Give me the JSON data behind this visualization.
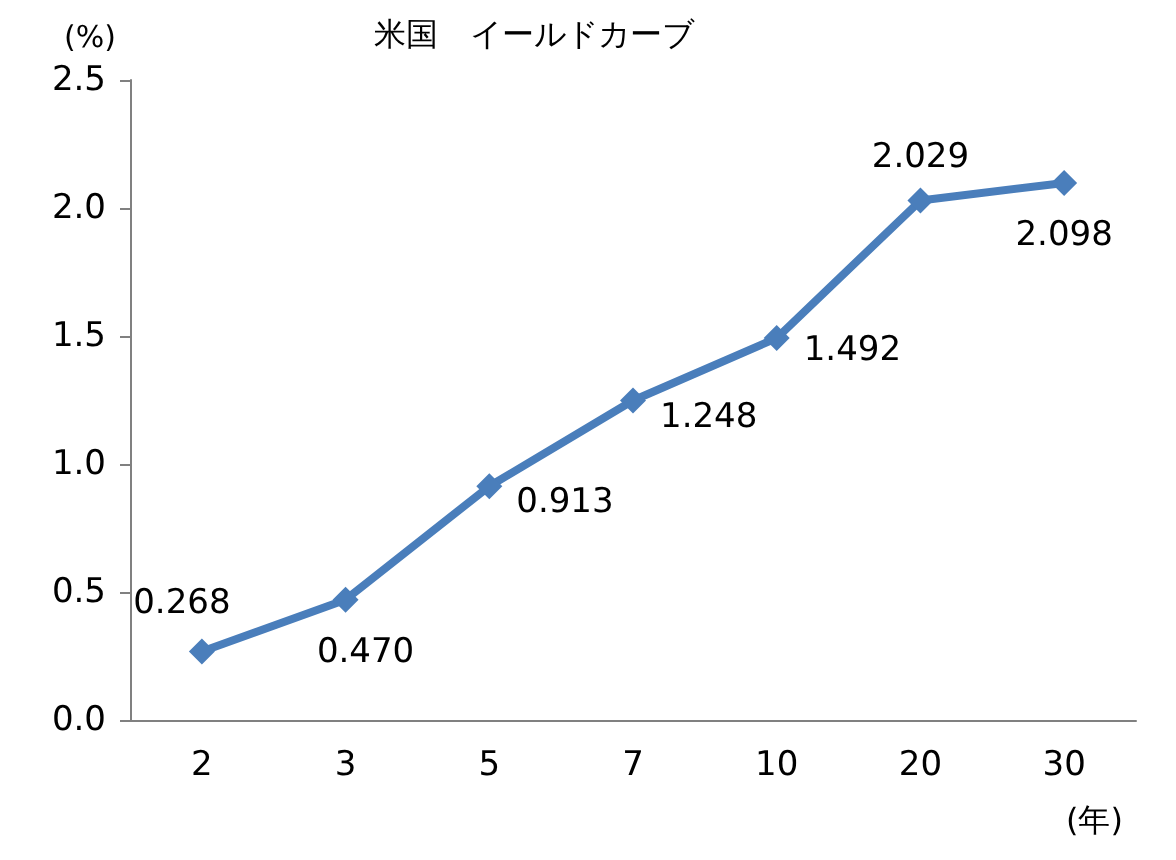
{
  "chart_data": {
    "type": "line",
    "title": "米国　イールドカーブ",
    "xlabel": "(年)",
    "ylabel": "(%)",
    "categories": [
      "2",
      "3",
      "5",
      "7",
      "10",
      "20",
      "30"
    ],
    "series": [
      {
        "color": "#4a7ebb",
        "values": [
          0.268,
          0.47,
          0.913,
          1.248,
          1.492,
          2.029,
          2.098
        ],
        "value_labels": [
          "0.268",
          "0.470",
          "0.913",
          "1.248",
          "1.492",
          "2.029",
          "2.098"
        ]
      }
    ],
    "ylim": [
      0,
      2.5
    ],
    "yticks": [
      {
        "value": 0,
        "label": "0.0"
      },
      {
        "value": 0.5,
        "label": "0.5"
      },
      {
        "value": 1,
        "label": "1.0"
      },
      {
        "value": 1.5,
        "label": "1.5"
      },
      {
        "value": 2,
        "label": "2.0"
      },
      {
        "value": 2.5,
        "label": "2.5"
      }
    ],
    "grid": false,
    "marker": "diamond",
    "line_style": "solid"
  }
}
